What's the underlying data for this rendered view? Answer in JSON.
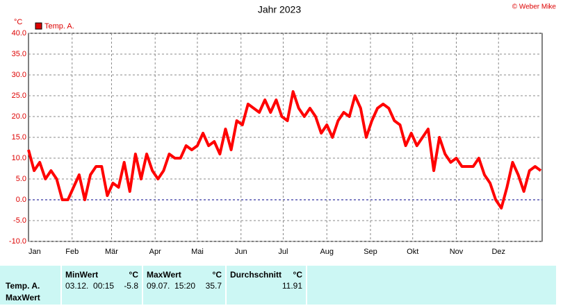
{
  "chart_data": {
    "type": "line",
    "title": "Jahr 2023",
    "copyright": "© Weber Mike",
    "y_label": "°C",
    "legend": "top-left",
    "grid": true,
    "xlim": [
      0,
      365
    ],
    "xticks": [
      {
        "value": 0,
        "label": "Jan"
      },
      {
        "value": 31,
        "label": "Feb"
      },
      {
        "value": 59,
        "label": "Mär"
      },
      {
        "value": 90,
        "label": "Apr"
      },
      {
        "value": 120,
        "label": "Mai"
      },
      {
        "value": 151,
        "label": "Jun"
      },
      {
        "value": 181,
        "label": "Jul"
      },
      {
        "value": 212,
        "label": "Aug"
      },
      {
        "value": 243,
        "label": "Sep"
      },
      {
        "value": 273,
        "label": "Okt"
      },
      {
        "value": 304,
        "label": "Nov"
      },
      {
        "value": 334,
        "label": "Dez"
      }
    ],
    "ylim": [
      -10,
      40
    ],
    "yticks": [
      {
        "value": -10,
        "label": "-10.0"
      },
      {
        "value": -5,
        "label": "-5.0"
      },
      {
        "value": 0,
        "label": "0.0"
      },
      {
        "value": 5,
        "label": "5.0"
      },
      {
        "value": 10,
        "label": "10.0"
      },
      {
        "value": 15,
        "label": "15.0"
      },
      {
        "value": 20,
        "label": "20.0"
      },
      {
        "value": 25,
        "label": "25.0"
      },
      {
        "value": 30,
        "label": "30.0"
      },
      {
        "value": 35,
        "label": "35.0"
      },
      {
        "value": 40,
        "label": "40.0"
      }
    ],
    "x": [
      0,
      4,
      8,
      12,
      16,
      20,
      24,
      28,
      32,
      36,
      40,
      44,
      48,
      52,
      56,
      60,
      64,
      68,
      72,
      76,
      80,
      84,
      88,
      92,
      96,
      100,
      104,
      108,
      112,
      116,
      120,
      124,
      128,
      132,
      136,
      140,
      144,
      148,
      152,
      156,
      160,
      164,
      168,
      172,
      176,
      180,
      184,
      188,
      192,
      196,
      200,
      204,
      208,
      212,
      216,
      220,
      224,
      228,
      232,
      236,
      240,
      244,
      248,
      252,
      256,
      260,
      264,
      268,
      272,
      276,
      280,
      284,
      288,
      292,
      296,
      300,
      304,
      308,
      312,
      316,
      320,
      324,
      328,
      332,
      336,
      340,
      344,
      348,
      352,
      356,
      360,
      364
    ],
    "series": [
      {
        "name": "Temp. A.",
        "color": "#ff0000",
        "values": [
          12,
          7,
          9,
          5,
          7,
          5,
          0,
          0,
          3,
          6,
          0,
          6,
          8,
          8,
          1,
          4,
          3,
          9,
          2,
          11,
          5,
          11,
          7,
          5,
          7,
          11,
          10,
          10,
          13,
          12,
          13,
          16,
          13,
          14,
          11,
          17,
          12,
          19,
          18,
          23,
          22,
          21,
          24,
          21,
          24,
          20,
          19,
          26,
          22,
          20,
          22,
          20,
          16,
          18,
          15,
          19,
          21,
          20,
          25,
          22,
          15,
          19,
          22,
          23,
          22,
          19,
          18,
          13,
          16,
          13,
          15,
          17,
          7,
          15,
          11,
          9,
          10,
          8,
          8,
          8,
          10,
          6,
          4,
          0,
          -2,
          3,
          9,
          6,
          2,
          7,
          8,
          7
        ]
      }
    ]
  },
  "table": {
    "row_labels": [
      "Temp. A.",
      "MaxWert"
    ],
    "columns": [
      {
        "title": "MinWert",
        "unit": "°C",
        "date": "03.12.  00:15",
        "value": -5.8
      },
      {
        "title": "MaxWert",
        "unit": "°C",
        "date": "09.07.  15:20",
        "value": 35.7
      },
      {
        "title": "Durchschnitt",
        "unit": "°C",
        "value": 11.91
      }
    ]
  }
}
